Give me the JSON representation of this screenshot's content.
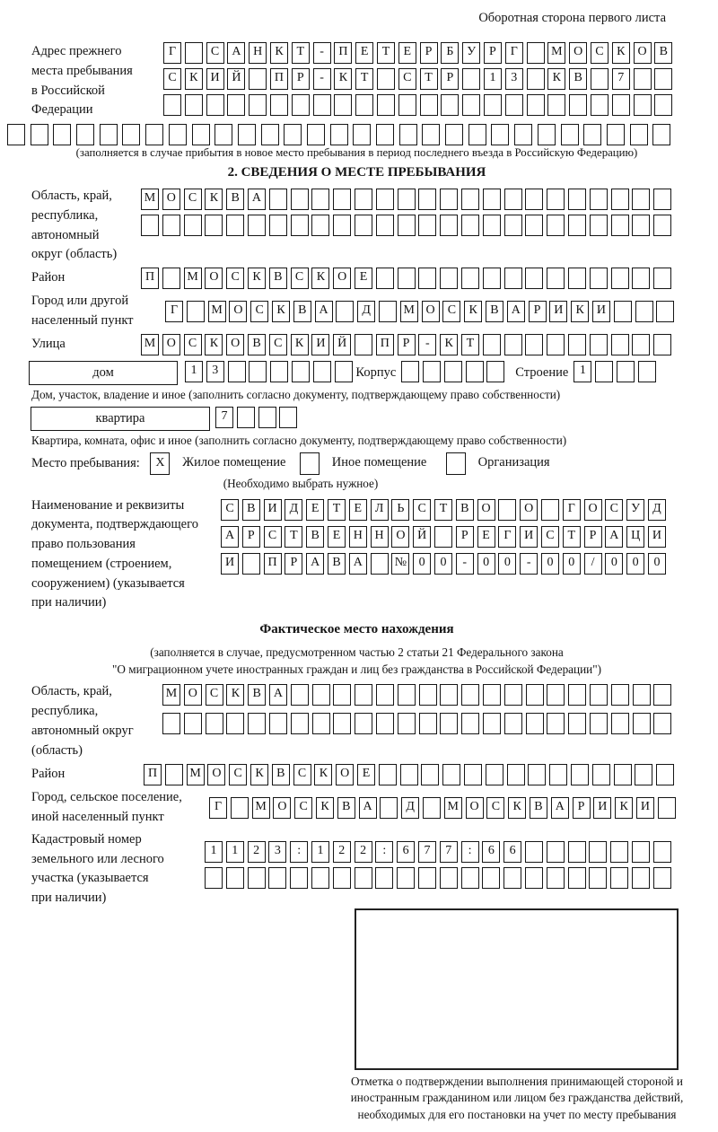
{
  "page": {
    "header_note": "Оборотная сторона первого листа"
  },
  "prev_address": {
    "label_lines": [
      "Адрес прежнего",
      "места пребывания",
      "в Российской",
      "Федерации"
    ],
    "rows": [
      {
        "text": "Г САНКТ-ПЕТЕРБУРГ МОСКОВ",
        "len": 24
      },
      {
        "text": "СКИЙ ПР-КТ СТР 13 КВ 7",
        "len": 24
      },
      {
        "text": "",
        "len": 24
      },
      {
        "text": "",
        "len": 29
      }
    ],
    "note": "(заполняется в случае прибытия в новое место пребывания в период последнего въезда в Российскую Федерацию)"
  },
  "section2": {
    "title": "2. СВЕДЕНИЯ О МЕСТЕ ПРЕБЫВАНИЯ",
    "oblast": {
      "label_lines": [
        "Область, край,",
        "республика,",
        "автономный",
        "округ (область)"
      ],
      "rows": [
        {
          "text": "МОСКВА",
          "len": 25
        },
        {
          "text": "",
          "len": 25
        }
      ]
    },
    "raion": {
      "label": "Район",
      "row": {
        "text": "П МОСКВСКОЕ",
        "len": 25
      }
    },
    "gorod": {
      "label_lines": [
        "Город или другой",
        "населенный пункт"
      ],
      "row": {
        "text": "Г МОСКВА Д МОСКВАРИКИ",
        "len": 24
      }
    },
    "ulitsa": {
      "label": "Улица",
      "row": {
        "text": "МОСКОВСКИЙ ПР-КТ",
        "len": 25
      }
    },
    "dom": {
      "rect_label": "дом",
      "cells": {
        "text": "13",
        "len": 8
      },
      "korpus_label": "Корпус",
      "korpus_cells": {
        "text": "",
        "len": 5
      },
      "stroenie_label": "Строение",
      "stroenie_cells": {
        "text": "1",
        "len": 4
      },
      "caption": "Дом, участок, владение и иное (заполнить согласно документу, подтверждающему право собственности)"
    },
    "kvartira": {
      "rect_label": "квартира",
      "cells": {
        "text": "7",
        "len": 4
      },
      "caption": "Квартира, комната, офис и иное (заполнить согласно документу, подтверждающему право собственности)"
    },
    "mesto": {
      "label": "Место пребывания:",
      "options": [
        {
          "mark": "X",
          "label": "Жилое помещение"
        },
        {
          "mark": "",
          "label": "Иное помещение"
        },
        {
          "mark": "",
          "label": "Организация"
        }
      ],
      "note": "(Необходимо выбрать нужное)"
    },
    "doc": {
      "label_lines": [
        "Наименование и реквизиты",
        "документа, подтверждающего",
        "право пользования",
        "помещением (строением,",
        "сооружением) (указывается",
        "при наличии)"
      ],
      "rows": [
        {
          "text": "СВИДЕТЕЛЬСТВО О ГОСУД",
          "len": 21
        },
        {
          "text": "АРСТВЕННОЙ РЕГИСТРАЦИ",
          "len": 21
        },
        {
          "text": "И ПРАВА №00-00-00/000",
          "len": 21
        }
      ]
    }
  },
  "fact": {
    "title": "Фактическое место нахождения",
    "note_line1": "(заполняется в случае, предусмотренном частью 2 статьи 21 Федерального закона",
    "note_line2": "\"О миграционном учете иностранных граждан и лиц без гражданства в Российской Федерации\")",
    "oblast": {
      "label_lines": [
        "Область, край,",
        "республика,",
        "автономный округ",
        "(область)"
      ],
      "rows": [
        {
          "text": "МОСКВА",
          "len": 24
        },
        {
          "text": "",
          "len": 24
        }
      ]
    },
    "raion": {
      "label": "Район",
      "row": {
        "text": "П МОСКВСКОЕ",
        "len": 25
      }
    },
    "gorod": {
      "label_lines": [
        "Город, сельское поселение,",
        "иной населенный пункт"
      ],
      "row": {
        "text": "Г МОСКВА Д МОСКВАРИКИ",
        "len": 22
      }
    },
    "kadastr": {
      "label_lines": [
        "Кадастровый номер",
        "земельного или лесного",
        "участка (указывается",
        "при наличии)"
      ],
      "rows": [
        {
          "text": "1123:122:677:66",
          "len": 22
        },
        {
          "text": "",
          "len": 22
        }
      ]
    },
    "stamp_caption": "Отметка о подтверждении выполнения принимающей стороной и иностранным гражданином или лицом без гражданства действий, необходимых для его постановки на учет по месту пребывания"
  }
}
